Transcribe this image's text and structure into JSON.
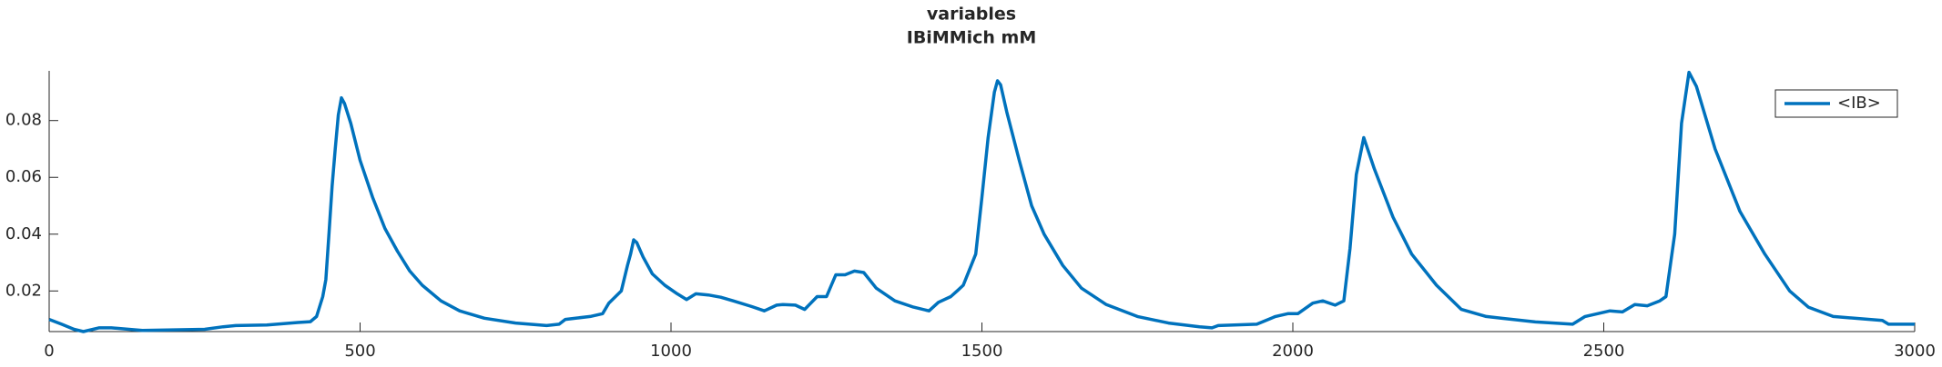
{
  "chart_data": {
    "type": "line",
    "title": "variables",
    "subtitle": "IBiMMich mM",
    "x": [
      0,
      20,
      40,
      55,
      80,
      100,
      150,
      200,
      250,
      280,
      300,
      350,
      400,
      420,
      430,
      440,
      445,
      450,
      455,
      460,
      465,
      470,
      475,
      485,
      500,
      520,
      540,
      560,
      580,
      600,
      630,
      660,
      700,
      750,
      800,
      820,
      830,
      850,
      870,
      890,
      900,
      920,
      930,
      935,
      940,
      945,
      955,
      970,
      990,
      1010,
      1025,
      1040,
      1060,
      1080,
      1100,
      1130,
      1150,
      1170,
      1180,
      1200,
      1215,
      1235,
      1250,
      1265,
      1280,
      1295,
      1310,
      1330,
      1360,
      1390,
      1415,
      1430,
      1450,
      1460,
      1470,
      1490,
      1500,
      1510,
      1520,
      1525,
      1530,
      1540,
      1560,
      1580,
      1600,
      1630,
      1660,
      1700,
      1750,
      1800,
      1850,
      1870,
      1880,
      1942,
      1972,
      1992,
      2008,
      2032,
      2048,
      2068,
      2082,
      2092,
      2102,
      2114,
      2131,
      2161,
      2191,
      2231,
      2271,
      2311,
      2390,
      2450,
      2470,
      2490,
      2510,
      2530,
      2550,
      2570,
      2590,
      2600,
      2614,
      2625,
      2637,
      2649,
      2679,
      2719,
      2759,
      2799,
      2829,
      2869,
      2948,
      2958,
      3000
    ],
    "series": [
      {
        "name": "<IB>",
        "color": "#0072bd",
        "values": [
          0.01,
          0.0083,
          0.0065,
          0.0057,
          0.007,
          0.007,
          0.0061,
          0.0063,
          0.0065,
          0.0074,
          0.0078,
          0.008,
          0.0089,
          0.0092,
          0.011,
          0.018,
          0.024,
          0.04,
          0.057,
          0.07,
          0.082,
          0.088,
          0.086,
          0.079,
          0.066,
          0.053,
          0.042,
          0.034,
          0.027,
          0.022,
          0.0165,
          0.013,
          0.0104,
          0.0087,
          0.0078,
          0.0083,
          0.01,
          0.0105,
          0.011,
          0.012,
          0.0157,
          0.02,
          0.029,
          0.033,
          0.038,
          0.037,
          0.032,
          0.026,
          0.022,
          0.019,
          0.017,
          0.019,
          0.0186,
          0.0178,
          0.0165,
          0.0145,
          0.013,
          0.015,
          0.0152,
          0.015,
          0.0135,
          0.018,
          0.018,
          0.0257,
          0.0257,
          0.027,
          0.0265,
          0.021,
          0.0165,
          0.0143,
          0.013,
          0.016,
          0.018,
          0.02,
          0.022,
          0.033,
          0.053,
          0.074,
          0.09,
          0.094,
          0.0926,
          0.083,
          0.066,
          0.05,
          0.04,
          0.029,
          0.021,
          0.0152,
          0.011,
          0.0087,
          0.0074,
          0.007,
          0.0078,
          0.0083,
          0.011,
          0.012,
          0.012,
          0.0157,
          0.0165,
          0.015,
          0.0165,
          0.035,
          0.061,
          0.074,
          0.063,
          0.046,
          0.033,
          0.022,
          0.0135,
          0.011,
          0.0091,
          0.0083,
          0.011,
          0.012,
          0.013,
          0.0126,
          0.0152,
          0.0148,
          0.0165,
          0.018,
          0.04,
          0.079,
          0.097,
          0.092,
          0.07,
          0.048,
          0.033,
          0.02,
          0.0143,
          0.011,
          0.0096,
          0.0083,
          0.0083
        ]
      }
    ],
    "xlim": [
      0,
      3000
    ],
    "xticks": [
      0,
      500,
      1000,
      1500,
      2000,
      2500,
      3000
    ],
    "ylim": [
      0.0057,
      0.0975
    ],
    "yticks": [
      0.02,
      0.04,
      0.06,
      0.08
    ],
    "legend": "top-right"
  }
}
